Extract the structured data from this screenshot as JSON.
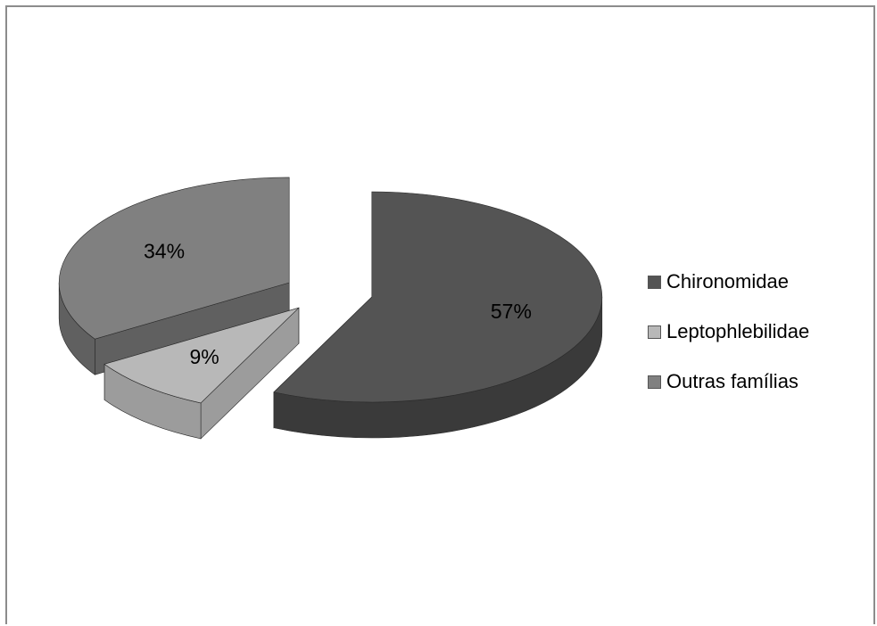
{
  "chart_data": {
    "type": "pie",
    "title": "",
    "three_d": true,
    "exploded": true,
    "legend_position": "right",
    "slices": [
      {
        "name": "Chironomidae",
        "value": 57,
        "label": "57%",
        "color": "#545454",
        "side_color": "#3a3a3a"
      },
      {
        "name": "Leptophlebilidae",
        "value": 9,
        "label": "9%",
        "color": "#b8b8b8",
        "side_color": "#9c9c9c"
      },
      {
        "name": "Outras famílias",
        "value": 34,
        "label": "34%",
        "color": "#808080",
        "side_color": "#606060"
      }
    ]
  }
}
